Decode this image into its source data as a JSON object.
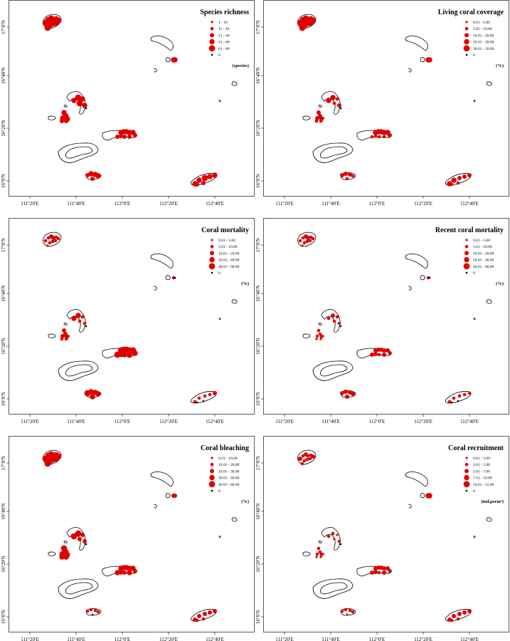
{
  "x_ticks": [
    "111°20′E",
    "111°40′E",
    "112°0′E",
    "112°20′E",
    "112°40′E"
  ],
  "y_ticks": [
    "17°0′N",
    "16°40′N",
    "16°20′N",
    "16°0′N"
  ],
  "colors": {
    "present": "#e00000",
    "zero": "#000000",
    "outline": "#000000",
    "frame": "#333333"
  },
  "panels": [
    {
      "title": "Species richness",
      "unit": "(species)",
      "legend": [
        {
          "label": "1 - 10"
        },
        {
          "label": "11 - 20"
        },
        {
          "label": "21 - 40"
        },
        {
          "label": "41 - 60"
        },
        {
          "label": "61 - 80"
        },
        {
          "label": "0"
        }
      ]
    },
    {
      "title": "Living coral coverage",
      "unit": "(%)",
      "legend": [
        {
          "label": "0.01 - 5.00"
        },
        {
          "label": "5.01 - 10.00"
        },
        {
          "label": "10.01 - 20.00"
        },
        {
          "label": "20.01 - 30.00"
        },
        {
          "label": "30.01 - 50.00"
        },
        {
          "label": "0"
        }
      ]
    },
    {
      "title": "Coral mortality",
      "unit": "(%)",
      "legend": [
        {
          "label": "0.01 - 5.00"
        },
        {
          "label": "5.01 - 10.00"
        },
        {
          "label": "10.01 - 20.00"
        },
        {
          "label": "20.01 - 40.00"
        },
        {
          "label": "40.01 - 90.00"
        },
        {
          "label": "0"
        }
      ]
    },
    {
      "title": "Recent coral mortality",
      "unit": "(%)",
      "legend": [
        {
          "label": "0.01 - 5.00"
        },
        {
          "label": "5.01 - 10.00"
        },
        {
          "label": "10.01 - 20.00"
        },
        {
          "label": "20.01 - 40.00"
        },
        {
          "label": "40.01 - 80.00"
        },
        {
          "label": "0"
        }
      ]
    },
    {
      "title": "Coral bleaching",
      "unit": "(%)",
      "legend": [
        {
          "label": "0.01 - 10.00"
        },
        {
          "label": "10.01 - 20.00"
        },
        {
          "label": "20.01 - 30.00"
        },
        {
          "label": "30.01 - 40.00"
        },
        {
          "label": "40.01 - 60.00"
        },
        {
          "label": "0"
        }
      ]
    },
    {
      "title": "Coral recruitment",
      "unit": "(ind.perm²)",
      "legend": [
        {
          "label": "0.01 - 3.00"
        },
        {
          "label": "3.01 - 5.00"
        },
        {
          "label": "5.01 - 7.00"
        },
        {
          "label": "7.01 - 10.00"
        },
        {
          "label": "10.01 - 15.00"
        },
        {
          "label": "0"
        }
      ]
    }
  ]
}
